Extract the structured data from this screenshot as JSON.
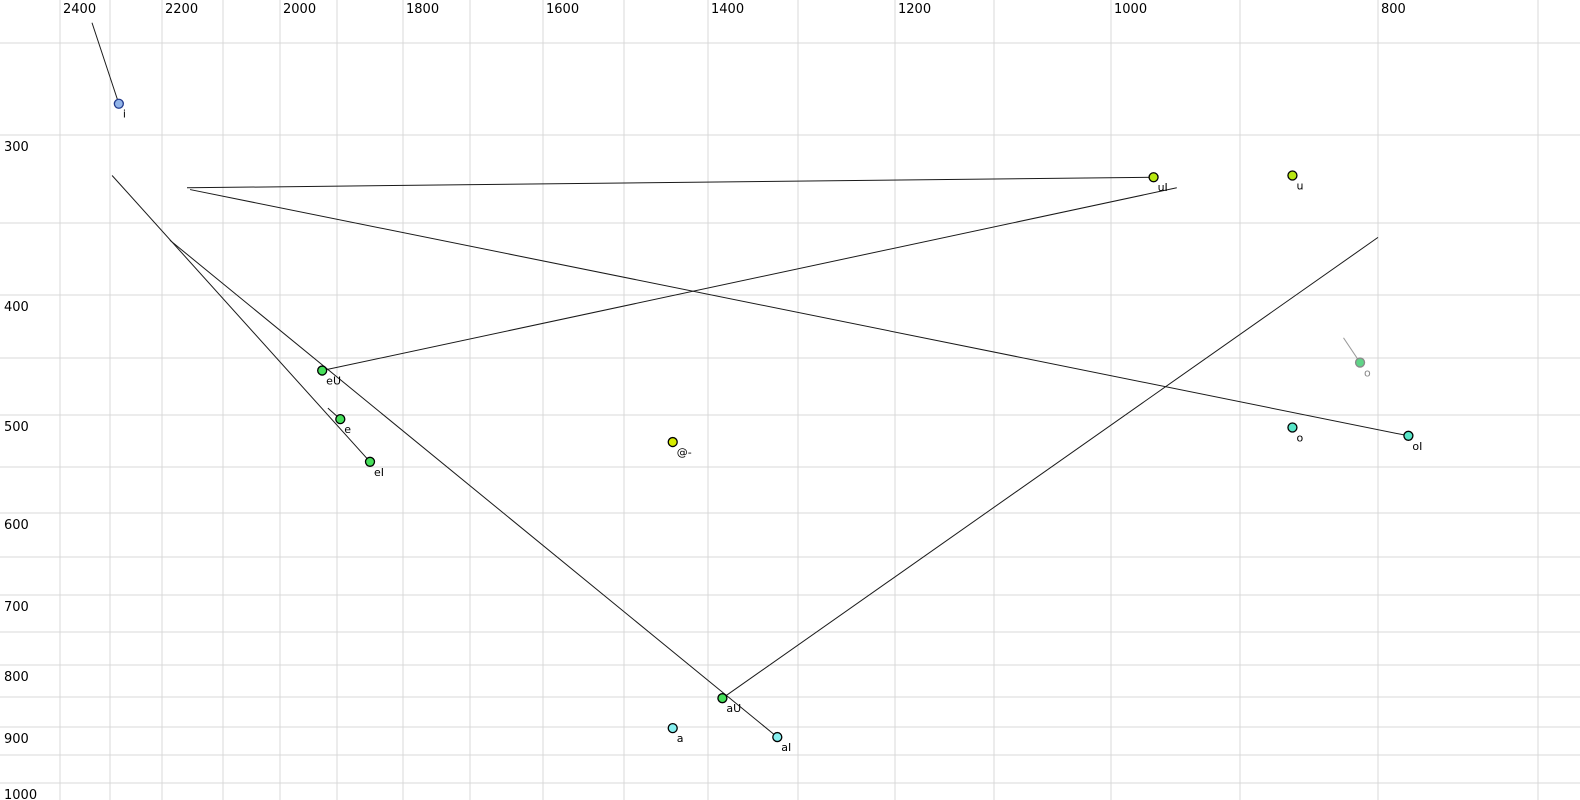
{
  "chart_data": {
    "type": "scatter",
    "title": "",
    "description": "Vowel formant space: F2 (Hz) on reversed horizontal axis (labels on top), F1 (Hz) on reversed vertical axis (labels on left). Dots are vowel tokens, lines are diphthong/glide trajectories.",
    "x_axis": {
      "unit": "Hz",
      "direction": "reversed",
      "side": "top",
      "tick_labels": [
        2400,
        2200,
        2000,
        1800,
        1600,
        1400,
        1200,
        1000,
        800
      ],
      "gridline_values": [
        2400,
        2300,
        2200,
        2100,
        2000,
        1900,
        1800,
        1700,
        1600,
        1500,
        1400,
        1300,
        1200,
        1100,
        1000,
        900,
        800,
        700
      ],
      "range_shown": [
        2520,
        680
      ]
    },
    "y_axis": {
      "unit": "Hz",
      "direction": "reversed-down",
      "side": "left",
      "tick_labels": [
        300,
        400,
        500,
        600,
        700,
        800,
        900,
        1000
      ],
      "gridline_values": [
        250,
        300,
        350,
        400,
        450,
        500,
        550,
        600,
        650,
        700,
        750,
        800,
        850,
        900,
        950,
        1000
      ],
      "range_shown": [
        225,
        1035
      ]
    },
    "colors": {
      "grid": "#d8d8d8",
      "trajectory": "#1a1a1a",
      "muted_trajectory": "#9a9a9a",
      "label": "#000000",
      "muted_label": "#8a8a8a",
      "blue_fill": "#92b4e8",
      "blue_stroke": "#223a8c",
      "chartreuse_fill": "#b8e812",
      "yellow_fill": "#d6ec00",
      "green_fill": "#46df5a",
      "teal_fill": "#58e6c8",
      "cyan_fill": "#86f0f0",
      "muted_green_fill": "#5fd487"
    },
    "points": [
      {
        "label": "i",
        "f2": 2283,
        "f1": 283,
        "fill": "#92b4e8",
        "stroke": "#223a8c",
        "trajectory_end": {
          "f2": 2336,
          "f1": 239
        }
      },
      {
        "label": "uI",
        "f2": 967,
        "f1": 324,
        "fill": "#b8e812",
        "stroke": "#000000",
        "trajectory_end": {
          "f2": 2159,
          "f1": 330
        }
      },
      {
        "label": "u",
        "f2": 862,
        "f1": 323,
        "fill": "#b8e812",
        "stroke": "#000000"
      },
      {
        "label": "eU",
        "f2": 1926,
        "f1": 461,
        "fill": "#46df5a",
        "stroke": "#000000",
        "trajectory_end": {
          "f2": 949,
          "f1": 330
        }
      },
      {
        "label": "e",
        "f2": 1895,
        "f1": 504,
        "fill": "#46df5a",
        "stroke": "#000000",
        "trajectory_end": {
          "f2": 1916,
          "f1": 494
        }
      },
      {
        "label": "eI",
        "f2": 1850,
        "f1": 545,
        "fill": "#46df5a",
        "stroke": "#000000",
        "trajectory_end": {
          "f2": 2296,
          "f1": 323
        }
      },
      {
        "label": "@-",
        "f2": 1442,
        "f1": 526,
        "fill": "#d6ec00",
        "stroke": "#000000"
      },
      {
        "label": "o",
        "f2": 813,
        "f1": 454,
        "fill": "#5fd487",
        "stroke": "#8a8a8a",
        "muted": true,
        "trajectory_end": {
          "f2": 825,
          "f1": 434
        }
      },
      {
        "label": "o",
        "f2": 862,
        "f1": 512,
        "fill": "#58e6c8",
        "stroke": "#000000"
      },
      {
        "label": "oI",
        "f2": 781,
        "f1": 520,
        "fill": "#58e6c8",
        "stroke": "#000000",
        "trajectory_end": {
          "f2": 2154,
          "f1": 331
        }
      },
      {
        "label": "aU",
        "f2": 1384,
        "f1": 852,
        "fill": "#46df5a",
        "stroke": "#000000",
        "trajectory_end": {
          "f2": 800,
          "f1": 360
        }
      },
      {
        "label": "a",
        "f2": 1442,
        "f1": 902,
        "fill": "#86f0f0",
        "stroke": "#000000"
      },
      {
        "label": "aI",
        "f2": 1323,
        "f1": 918,
        "fill": "#86f0f0",
        "stroke": "#000000",
        "trajectory_end": {
          "f2": 2187,
          "f1": 362
        }
      }
    ]
  }
}
